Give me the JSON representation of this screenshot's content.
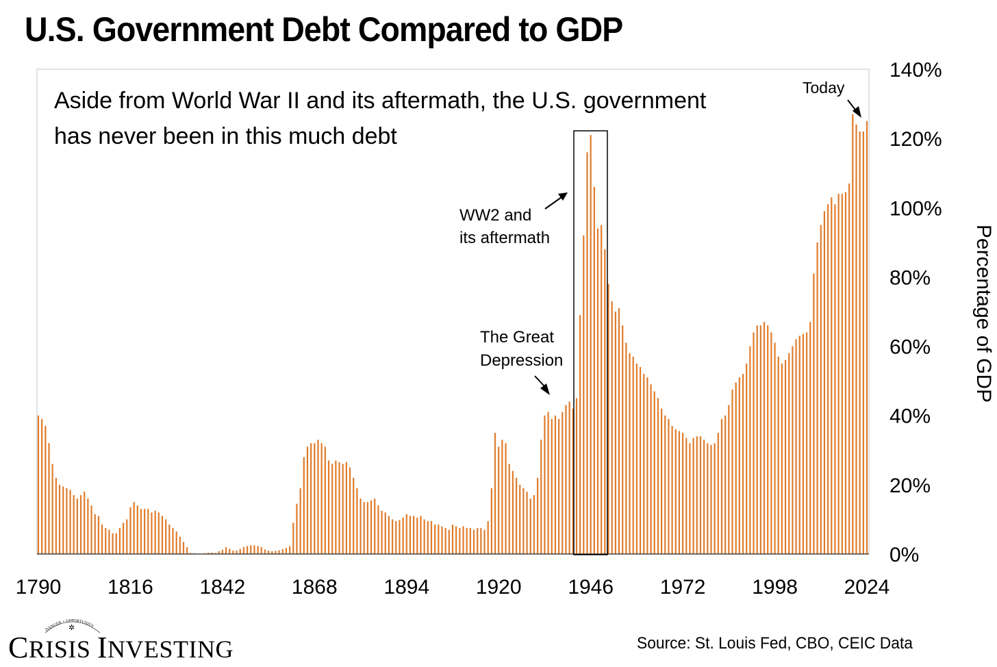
{
  "title": "U.S. Government Debt Compared to GDP",
  "source": "Source: St. Louis Fed, CBO, CEIC Data",
  "logo": {
    "text": "Crisis Investing",
    "seal_text": "DANGER + OPPORTUNITY"
  },
  "colors": {
    "bar": "#E07B2A",
    "axis": "#000000",
    "frame": "#D9D9D9"
  },
  "chart_data": {
    "type": "bar",
    "title": "U.S. Government Debt Compared to GDP",
    "subtitle": "Aside from World War II and its aftermath, the U.S. government has never been in this much debt",
    "ylabel": "Percentage of GDP",
    "xlabel": "",
    "x_start": 1790,
    "x_end": 2024,
    "ylim": [
      0,
      140
    ],
    "x_ticks": [
      "1790",
      "1816",
      "1842",
      "1868",
      "1894",
      "1920",
      "1946",
      "1972",
      "1998",
      "2024"
    ],
    "y_ticks": [
      "0%",
      "20%",
      "40%",
      "60%",
      "80%",
      "100%",
      "120%",
      "140%"
    ],
    "grid": false,
    "annotations": [
      {
        "text_lines": [
          "Today"
        ],
        "target_year": 2020
      },
      {
        "text_lines": [
          "WW2 and",
          "its aftermath"
        ],
        "target_year": 1944
      },
      {
        "text_lines": [
          "The Great",
          "Depression"
        ],
        "target_year": 1933
      }
    ],
    "highlight_range": [
      1942,
      1951
    ],
    "keyframes": [
      [
        1790,
        40
      ],
      [
        1791,
        39
      ],
      [
        1792,
        37
      ],
      [
        1793,
        32
      ],
      [
        1794,
        26
      ],
      [
        1795,
        22
      ],
      [
        1796,
        20
      ],
      [
        1797,
        19.5
      ],
      [
        1798,
        19
      ],
      [
        1799,
        18.5
      ],
      [
        1800,
        17
      ],
      [
        1801,
        16
      ],
      [
        1802,
        17
      ],
      [
        1803,
        18
      ],
      [
        1804,
        16
      ],
      [
        1805,
        14
      ],
      [
        1806,
        11.5
      ],
      [
        1807,
        11
      ],
      [
        1808,
        8.5
      ],
      [
        1809,
        7.5
      ],
      [
        1810,
        7
      ],
      [
        1811,
        6
      ],
      [
        1812,
        6
      ],
      [
        1813,
        7.5
      ],
      [
        1814,
        9
      ],
      [
        1815,
        10
      ],
      [
        1816,
        13.5
      ],
      [
        1817,
        15
      ],
      [
        1818,
        14
      ],
      [
        1819,
        13
      ],
      [
        1820,
        13
      ],
      [
        1821,
        13
      ],
      [
        1822,
        12
      ],
      [
        1823,
        12.5
      ],
      [
        1824,
        12
      ],
      [
        1825,
        11
      ],
      [
        1826,
        10
      ],
      [
        1827,
        8.5
      ],
      [
        1828,
        7.5
      ],
      [
        1829,
        6.5
      ],
      [
        1830,
        5
      ],
      [
        1831,
        3.5
      ],
      [
        1832,
        2
      ],
      [
        1833,
        0.3
      ],
      [
        1834,
        0.2
      ],
      [
        1835,
        0
      ],
      [
        1836,
        0
      ],
      [
        1837,
        0.2
      ],
      [
        1838,
        0.4
      ],
      [
        1839,
        0.4
      ],
      [
        1840,
        0.3
      ],
      [
        1841,
        0.8
      ],
      [
        1842,
        1.2
      ],
      [
        1843,
        2
      ],
      [
        1844,
        1.5
      ],
      [
        1845,
        1
      ],
      [
        1846,
        1
      ],
      [
        1847,
        1.5
      ],
      [
        1848,
        2
      ],
      [
        1849,
        2.3
      ],
      [
        1850,
        2.5
      ],
      [
        1851,
        2.5
      ],
      [
        1852,
        2.3
      ],
      [
        1853,
        2
      ],
      [
        1854,
        1.3
      ],
      [
        1855,
        1
      ],
      [
        1856,
        0.8
      ],
      [
        1857,
        0.9
      ],
      [
        1858,
        1.1
      ],
      [
        1859,
        1.4
      ],
      [
        1860,
        1.7
      ],
      [
        1861,
        2.3
      ],
      [
        1862,
        9
      ],
      [
        1863,
        14.5
      ],
      [
        1864,
        19
      ],
      [
        1865,
        28
      ],
      [
        1866,
        31
      ],
      [
        1867,
        32
      ],
      [
        1868,
        32
      ],
      [
        1869,
        33
      ],
      [
        1870,
        32
      ],
      [
        1871,
        31
      ],
      [
        1872,
        27
      ],
      [
        1873,
        26
      ],
      [
        1874,
        27
      ],
      [
        1875,
        26.5
      ],
      [
        1876,
        26
      ],
      [
        1877,
        26.5
      ],
      [
        1878,
        25
      ],
      [
        1879,
        22
      ],
      [
        1880,
        19
      ],
      [
        1881,
        16
      ],
      [
        1882,
        15
      ],
      [
        1883,
        15
      ],
      [
        1884,
        15.5
      ],
      [
        1885,
        16
      ],
      [
        1886,
        14
      ],
      [
        1887,
        12.5
      ],
      [
        1888,
        12
      ],
      [
        1889,
        11
      ],
      [
        1890,
        10
      ],
      [
        1891,
        9.5
      ],
      [
        1892,
        9.8
      ],
      [
        1893,
        10.5
      ],
      [
        1894,
        11.5
      ],
      [
        1895,
        11
      ],
      [
        1896,
        11
      ],
      [
        1897,
        10.5
      ],
      [
        1898,
        11
      ],
      [
        1899,
        10
      ],
      [
        1900,
        9.5
      ],
      [
        1901,
        9.5
      ],
      [
        1902,
        8.5
      ],
      [
        1903,
        8.5
      ],
      [
        1904,
        8
      ],
      [
        1905,
        7.5
      ],
      [
        1906,
        7
      ],
      [
        1907,
        8.5
      ],
      [
        1908,
        8
      ],
      [
        1909,
        7.5
      ],
      [
        1910,
        8
      ],
      [
        1911,
        7.5
      ],
      [
        1912,
        7.5
      ],
      [
        1913,
        7
      ],
      [
        1914,
        7.5
      ],
      [
        1915,
        7.5
      ],
      [
        1916,
        7
      ],
      [
        1917,
        9.5
      ],
      [
        1918,
        19
      ],
      [
        1919,
        35
      ],
      [
        1920,
        31
      ],
      [
        1921,
        33
      ],
      [
        1922,
        32
      ],
      [
        1923,
        26
      ],
      [
        1924,
        24
      ],
      [
        1925,
        22
      ],
      [
        1926,
        20
      ],
      [
        1927,
        19
      ],
      [
        1928,
        18
      ],
      [
        1929,
        16
      ],
      [
        1930,
        17
      ],
      [
        1931,
        22
      ],
      [
        1932,
        33
      ],
      [
        1933,
        40
      ],
      [
        1934,
        41
      ],
      [
        1935,
        39
      ],
      [
        1936,
        40
      ],
      [
        1937,
        39
      ],
      [
        1938,
        41
      ],
      [
        1939,
        43
      ],
      [
        1940,
        44
      ],
      [
        1941,
        42
      ],
      [
        1942,
        45
      ],
      [
        1943,
        69
      ],
      [
        1944,
        92
      ],
      [
        1945,
        116
      ],
      [
        1946,
        121
      ],
      [
        1947,
        106
      ],
      [
        1948,
        94
      ],
      [
        1949,
        95
      ],
      [
        1950,
        88
      ],
      [
        1951,
        78
      ],
      [
        1952,
        73
      ],
      [
        1953,
        70
      ],
      [
        1954,
        71
      ],
      [
        1955,
        66
      ],
      [
        1956,
        61
      ],
      [
        1957,
        58
      ],
      [
        1958,
        57
      ],
      [
        1959,
        55
      ],
      [
        1960,
        54
      ],
      [
        1961,
        52
      ],
      [
        1962,
        51
      ],
      [
        1963,
        49
      ],
      [
        1964,
        47
      ],
      [
        1965,
        45
      ],
      [
        1966,
        42
      ],
      [
        1967,
        40
      ],
      [
        1968,
        39
      ],
      [
        1969,
        37
      ],
      [
        1970,
        36
      ],
      [
        1971,
        35.5
      ],
      [
        1972,
        35
      ],
      [
        1973,
        33.5
      ],
      [
        1974,
        32
      ],
      [
        1975,
        33.5
      ],
      [
        1976,
        34
      ],
      [
        1977,
        34
      ],
      [
        1978,
        33
      ],
      [
        1979,
        32
      ],
      [
        1980,
        31.5
      ],
      [
        1981,
        32
      ],
      [
        1982,
        35
      ],
      [
        1983,
        39
      ],
      [
        1984,
        40
      ],
      [
        1985,
        43
      ],
      [
        1986,
        47.5
      ],
      [
        1987,
        49.5
      ],
      [
        1988,
        51
      ],
      [
        1989,
        52
      ],
      [
        1990,
        55
      ],
      [
        1991,
        60
      ],
      [
        1992,
        64
      ],
      [
        1993,
        66
      ],
      [
        1994,
        66
      ],
      [
        1995,
        67
      ],
      [
        1996,
        66
      ],
      [
        1997,
        64
      ],
      [
        1998,
        61
      ],
      [
        1999,
        57
      ],
      [
        2000,
        55
      ],
      [
        2001,
        56
      ],
      [
        2002,
        58
      ],
      [
        2003,
        60
      ],
      [
        2004,
        62
      ],
      [
        2005,
        63
      ],
      [
        2006,
        63.5
      ],
      [
        2007,
        64
      ],
      [
        2008,
        67
      ],
      [
        2009,
        81
      ],
      [
        2010,
        90
      ],
      [
        2011,
        95
      ],
      [
        2012,
        99
      ],
      [
        2013,
        101
      ],
      [
        2014,
        103
      ],
      [
        2015,
        101
      ],
      [
        2016,
        104
      ],
      [
        2017,
        104
      ],
      [
        2018,
        104.5
      ],
      [
        2019,
        107
      ],
      [
        2020,
        127
      ],
      [
        2021,
        124
      ],
      [
        2022,
        122
      ],
      [
        2023,
        122
      ],
      [
        2024,
        125
      ]
    ]
  }
}
